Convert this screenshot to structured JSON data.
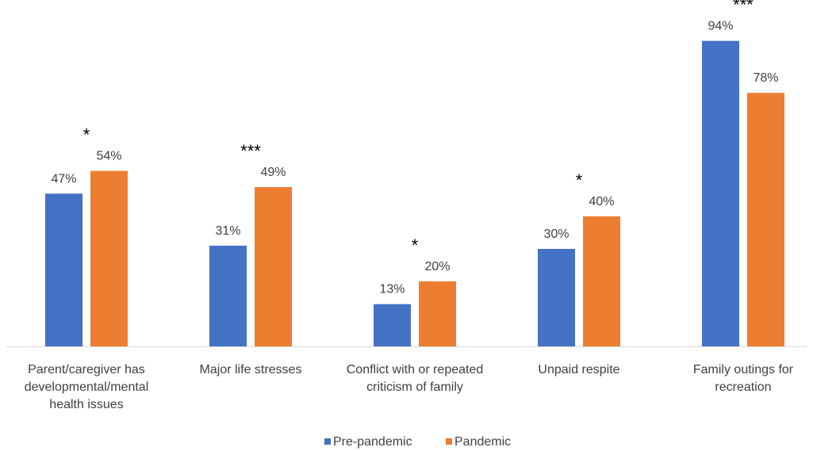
{
  "chart_data": {
    "type": "bar",
    "title": "",
    "xlabel": "",
    "ylabel": "",
    "ylim": [
      0,
      100
    ],
    "grid": false,
    "legend_position": "bottom",
    "categories": [
      "Parent/caregiver has developmental/mental health issues",
      "Major life stresses",
      "Conflict with or repeated criticism of family",
      "Unpaid respite",
      "Family outings for recreation"
    ],
    "category_label_lines": [
      [
        "Parent/caregiver has",
        "developmental/mental",
        "health issues"
      ],
      [
        "Major life stresses"
      ],
      [
        "Conflict with or repeated",
        "criticism of family"
      ],
      [
        "Unpaid respite"
      ],
      [
        "Family outings for",
        "recreation"
      ]
    ],
    "series": [
      {
        "name": "Pre-pandemic",
        "color": "#4472C4",
        "values": [
          47,
          31,
          13,
          30,
          94
        ]
      },
      {
        "name": "Pandemic",
        "color": "#ED7D31",
        "values": [
          54,
          49,
          20,
          40,
          78
        ]
      }
    ],
    "data_labels": [
      [
        "47%",
        "31%",
        "13%",
        "30%",
        "94%"
      ],
      [
        "54%",
        "49%",
        "20%",
        "40%",
        "78%"
      ]
    ],
    "significance": [
      "*",
      "***",
      "*",
      "*",
      "***"
    ]
  }
}
